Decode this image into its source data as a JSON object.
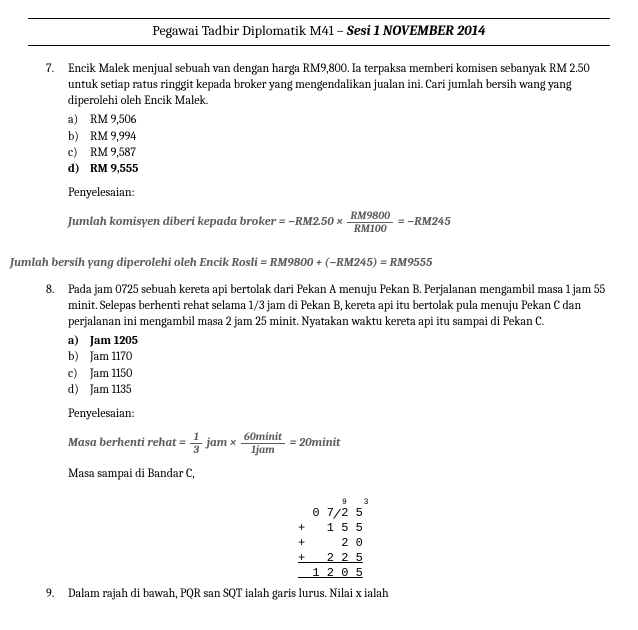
{
  "header": {
    "title_plain": "Pegawai Tadbir Diplomatik M41 – ",
    "title_emph": "Sesi 1 NOVEMBER 2014"
  },
  "q7": {
    "number": "7.",
    "text": "Encik Malek menjual sebuah van dengan harga RM9,800. Ia terpaksa memberi komisen sebanyak RM 2.50 untuk setiap ratus ringgit kepada broker yang mengendalikan jualan ini. Cari jumlah bersih wang yang diperolehi oleh Encik Malek.",
    "opts": {
      "a": "RM 9,506",
      "b": "RM 9,994",
      "c": "RM 9,587",
      "d": "RM 9,555"
    },
    "penyelesaian": "Penyelesaian:",
    "formula1_lhs": "Jumlah komisyen diberi kepada broker = −RM2.50 ×",
    "formula1_frac_top": "RM9800",
    "formula1_frac_bot": "RM100",
    "formula1_rhs": "= −RM245",
    "formula2": "Jumlah bersih yang diperolehi oleh Encik Rosli = RM9800 + (−RM245) = RM9555"
  },
  "q8": {
    "number": "8.",
    "text": "Pada jam 0725 sebuah kereta api bertolak dari Pekan A menuju Pekan B. Perjalanan mengambil masa 1 jam 55 minit. Selepas berhenti rehat selama 1/3 jam di Pekan B, kereta api itu bertolak pula menuju Pekan C dan perjalanan ini mengambil masa 2 jam 25 minit. Nyatakan waktu kereta api itu sampai di Pekan C.",
    "opts": {
      "a": "Jam 1205",
      "b": "Jam 1170",
      "c": "Jam 1150",
      "d": "Jam 1135"
    },
    "penyelesaian": "Penyelesaian:",
    "formula_lhs": "Masa berhenti rehat =",
    "frac1_top": "1",
    "frac1_bot": "3",
    "formula_mid": "jam ×",
    "frac2_top": "60minit",
    "frac2_bot": "1jam",
    "formula_rhs": "= 20minit",
    "masa_sampai": "Masa sampai di Bandar C,",
    "add": {
      "carry": "9 3",
      "l1": "  0 7 2 5",
      "l2": "+   1 5 5",
      "l3": "+     2 0",
      "l4": "+   2 2 5",
      "sum": "  1 2 0 5"
    }
  },
  "q9": {
    "number": "9.",
    "text": "Dalam rajah di bawah, PQR san SQT ialah garis lurus. Nilai x ialah"
  }
}
